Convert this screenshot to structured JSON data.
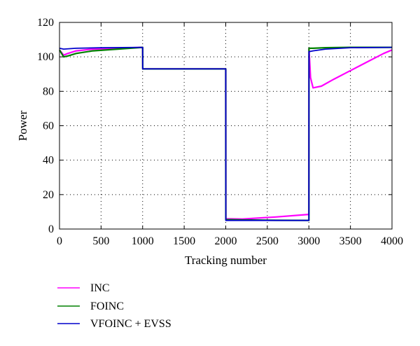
{
  "chart_data": {
    "type": "line",
    "title": "",
    "xlabel": "Tracking number",
    "ylabel": "Power",
    "xlim": [
      0,
      4000
    ],
    "ylim": [
      0,
      120
    ],
    "xticks": [
      0,
      500,
      1000,
      1500,
      2000,
      2500,
      3000,
      3500,
      4000
    ],
    "yticks": [
      0,
      20,
      40,
      60,
      80,
      100,
      120
    ],
    "grid": true,
    "legend_position": "below-left",
    "series": [
      {
        "name": "INC",
        "color": "#ff00ff",
        "x": [
          0,
          50,
          100,
          200,
          400,
          700,
          1000,
          1001,
          2000,
          2001,
          2200,
          2600,
          3000,
          3001,
          3020,
          3050,
          3150,
          3300,
          3500,
          3700,
          3900,
          4000
        ],
        "y": [
          104,
          101,
          102,
          103.5,
          104.5,
          105,
          105.5,
          93,
          93,
          6,
          5.8,
          7,
          8.5,
          105,
          88,
          82,
          83,
          87,
          92,
          97,
          102,
          104
        ]
      },
      {
        "name": "FOINC",
        "color": "#008000",
        "x": [
          0,
          50,
          100,
          200,
          400,
          700,
          1000,
          1001,
          2000,
          2001,
          2200,
          2600,
          3000,
          3001,
          3050,
          3200,
          3500,
          4000
        ],
        "y": [
          104,
          100,
          100.5,
          102,
          103.5,
          104.5,
          105.5,
          93,
          93,
          5.5,
          5.3,
          5.1,
          5,
          105,
          105,
          105.3,
          105.5,
          105.5
        ]
      },
      {
        "name": "VFOINC + EVSS",
        "color": "#0000cc",
        "x": [
          0,
          50,
          200,
          500,
          1000,
          1001,
          2000,
          2001,
          2500,
          3000,
          3001,
          3050,
          3200,
          3500,
          4000
        ],
        "y": [
          105,
          104.5,
          105,
          105.3,
          105.5,
          93,
          93,
          5,
          5,
          5,
          103,
          103.5,
          104.5,
          105.3,
          105.5
        ]
      }
    ]
  }
}
